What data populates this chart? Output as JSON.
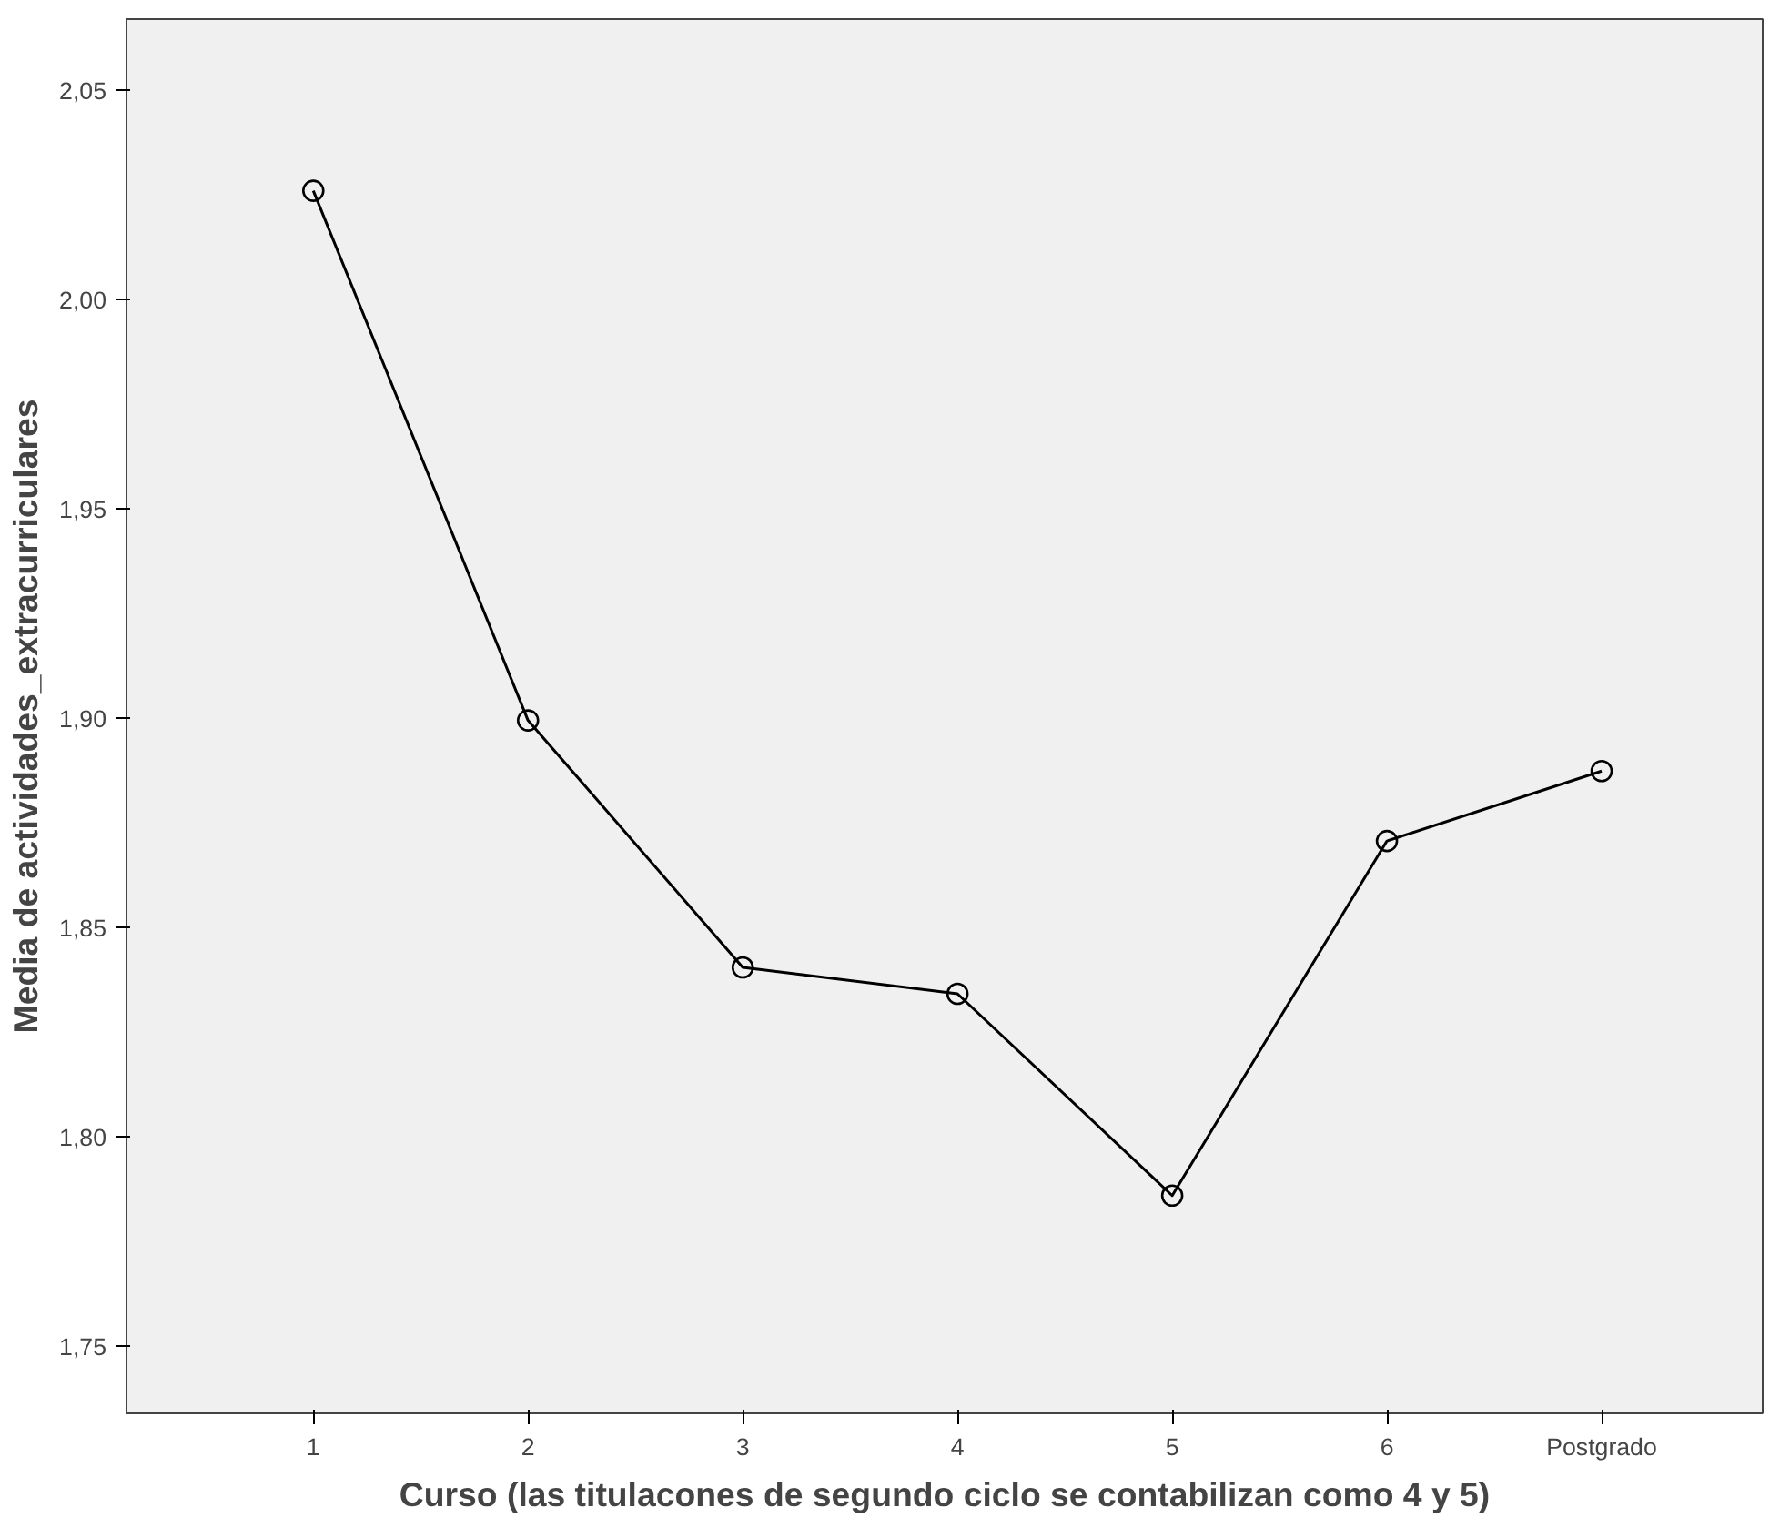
{
  "chart_data": {
    "type": "line",
    "xlabel": "Curso (las titulacones de segundo ciclo se contabilizan como 4 y 5)",
    "ylabel": "Media de actividades_extracurriculares",
    "categories": [
      "1",
      "2",
      "3",
      "4",
      "5",
      "6",
      "Postgrado"
    ],
    "series": [
      {
        "color": "#000000",
        "values": [
          2.026,
          1.8995,
          1.8405,
          1.8342,
          1.786,
          1.8707,
          1.8874
        ]
      }
    ],
    "ylim": [
      1.734,
      2.067
    ],
    "yticks": [
      {
        "value": 1.75,
        "label": "1,75"
      },
      {
        "value": 1.8,
        "label": "1,80"
      },
      {
        "value": 1.85,
        "label": "1,85"
      },
      {
        "value": 1.9,
        "label": "1,90"
      },
      {
        "value": 1.95,
        "label": "1,95"
      },
      {
        "value": 2.0,
        "label": "2,00"
      },
      {
        "value": 2.05,
        "label": "2,05"
      }
    ],
    "grid": false,
    "marker": "circle",
    "line_style": "solid"
  }
}
